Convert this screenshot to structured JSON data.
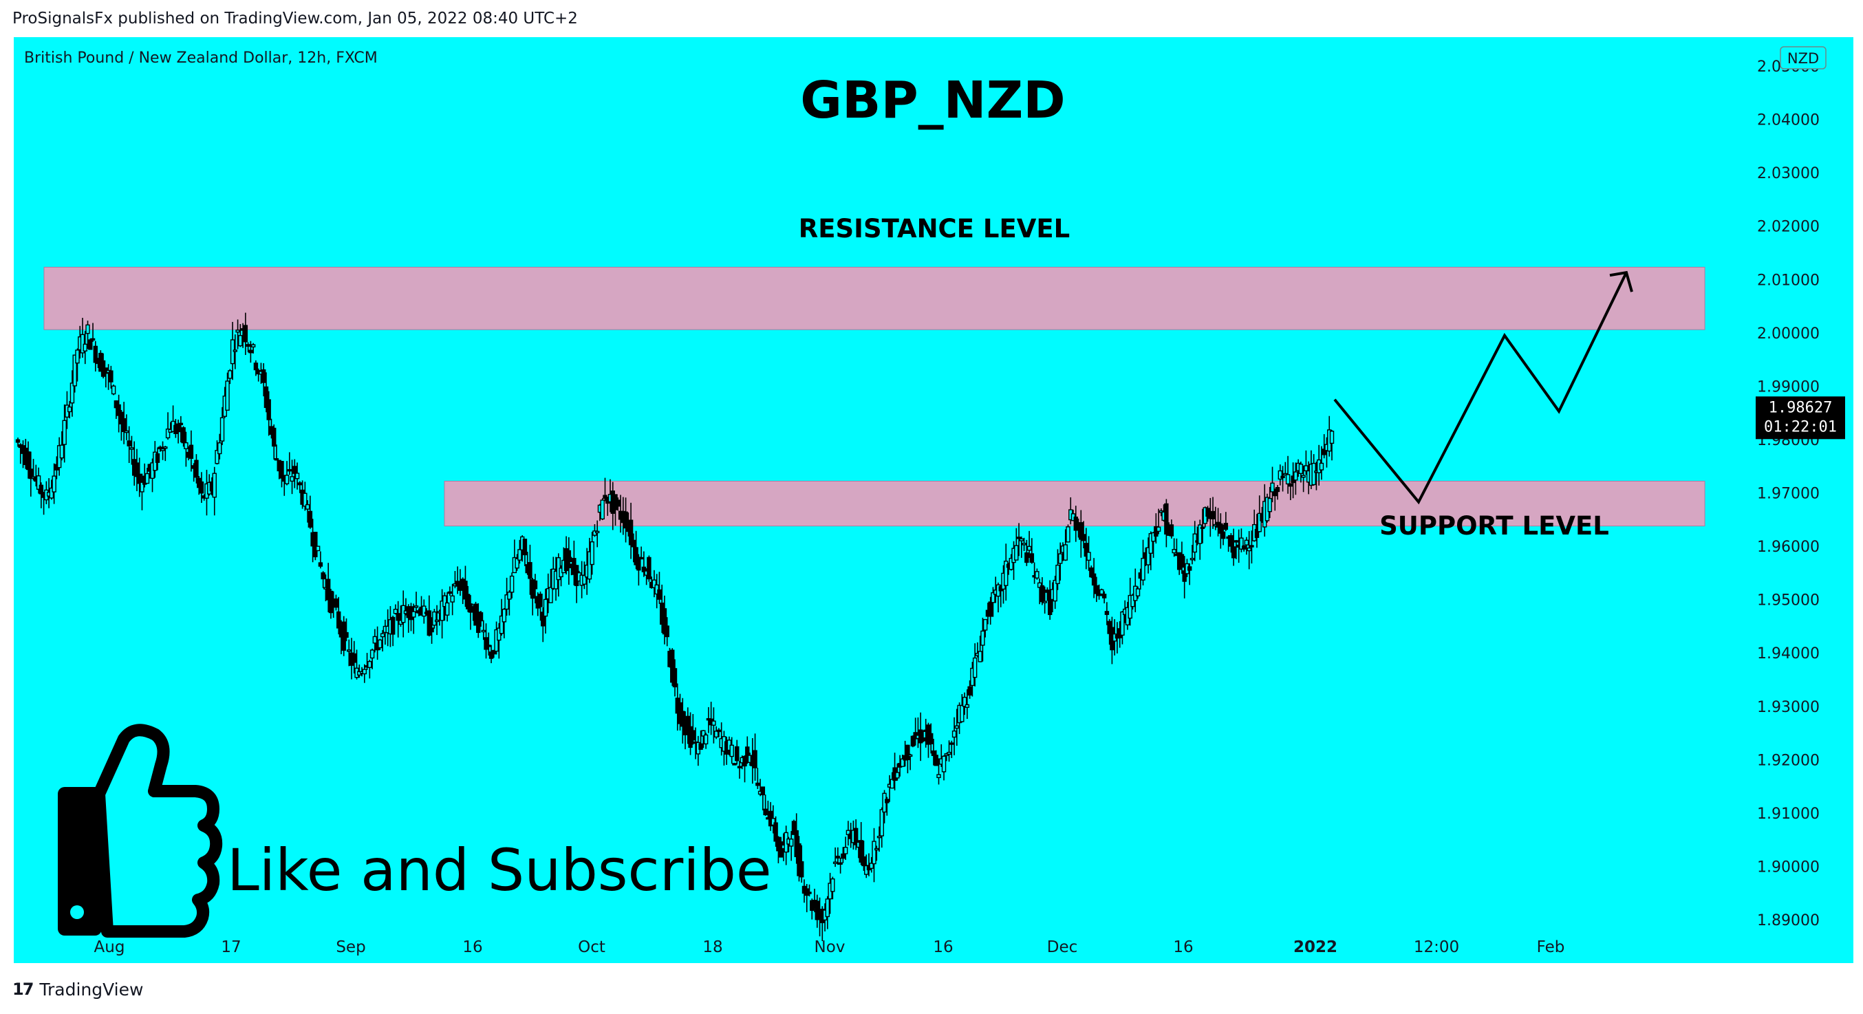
{
  "header": {
    "published_text": "ProSignalsFx published on TradingView.com, Jan 05, 2022 08:40 UTC+2"
  },
  "footer": {
    "brand": "TradingView",
    "logo_glyph": "17"
  },
  "chart_data": {
    "type": "candlestick",
    "symbol_description": "British Pound / New Zealand Dollar, 12h, FXCM",
    "title": "GBP_NZD",
    "currency_badge": "NZD",
    "y_ticks": [
      "2.05000",
      "2.04000",
      "2.03000",
      "2.02000",
      "2.01000",
      "2.00000",
      "1.99000",
      "1.98000",
      "1.97000",
      "1.96000",
      "1.95000",
      "1.94000",
      "1.93000",
      "1.92000",
      "1.91000",
      "1.90000",
      "1.89000"
    ],
    "y_tick_values": [
      2.05,
      2.04,
      2.03,
      2.02,
      2.01,
      2.0,
      1.99,
      1.98,
      1.97,
      1.96,
      1.95,
      1.94,
      1.93,
      1.92,
      1.91,
      1.9,
      1.89
    ],
    "ylim": [
      1.8795,
      2.0565
    ],
    "x_ticks": [
      "Aug",
      "17",
      "Sep",
      "16",
      "Oct",
      "18",
      "Nov",
      "16",
      "Dec",
      "16",
      "2022",
      "12:00",
      "Feb"
    ],
    "current_price": "1.98627",
    "current_price_value": 1.98627,
    "countdown": "01:22:01",
    "colors": {
      "background": "#00fcff",
      "zone_fill": "#d6a6c2",
      "candle": "#000000",
      "price_tag_bg": "#000000",
      "price_tag_text": "#ffffff"
    },
    "zones": [
      {
        "name": "RESISTANCE LEVEL",
        "low": 2.0006,
        "high": 2.0123
      },
      {
        "name": "SUPPORT LEVEL",
        "low": 1.9638,
        "high": 1.9722
      }
    ],
    "annotations": {
      "resistance_label": "RESISTANCE LEVEL",
      "support_label": "SUPPORT LEVEL",
      "cta_text": "Like and Subscribe"
    },
    "projection_path": [
      1.9875,
      1.9683,
      1.9995,
      1.9853,
      2.0113
    ],
    "trend_path_closes": [
      1.977,
      1.972,
      1.969,
      1.975,
      1.985,
      1.997,
      2.0,
      1.995,
      1.992,
      1.985,
      1.978,
      1.972,
      1.974,
      1.978,
      1.983,
      1.981,
      1.976,
      1.969,
      1.971,
      1.984,
      1.998,
      2.001,
      1.996,
      1.99,
      1.978,
      1.972,
      1.974,
      1.968,
      1.96,
      1.952,
      1.947,
      1.941,
      1.936,
      1.939,
      1.942,
      1.944,
      1.947,
      1.948,
      1.949,
      1.945,
      1.947,
      1.951,
      1.953,
      1.948,
      1.945,
      1.94,
      1.945,
      1.955,
      1.96,
      1.952,
      1.947,
      1.954,
      1.958,
      1.955,
      1.953,
      1.963,
      1.97,
      1.967,
      1.965,
      1.958,
      1.956,
      1.951,
      1.942,
      1.93,
      1.925,
      1.922,
      1.927,
      1.924,
      1.922,
      1.919,
      1.922,
      1.913,
      1.909,
      1.902,
      1.907,
      1.898,
      1.893,
      1.89,
      1.899,
      1.903,
      1.907,
      1.899,
      1.903,
      1.912,
      1.918,
      1.921,
      1.924,
      1.925,
      1.918,
      1.92,
      1.928,
      1.932,
      1.94,
      1.948,
      1.951,
      1.957,
      1.961,
      1.958,
      1.952,
      1.949,
      1.957,
      1.966,
      1.963,
      1.955,
      1.951,
      1.941,
      1.946,
      1.951,
      1.957,
      1.963,
      1.966,
      1.959,
      1.954,
      1.961,
      1.966,
      1.964,
      1.962,
      1.959,
      1.961,
      1.963,
      1.968,
      1.972,
      1.973,
      1.974,
      1.973,
      1.975,
      1.98,
      1.986
    ]
  }
}
